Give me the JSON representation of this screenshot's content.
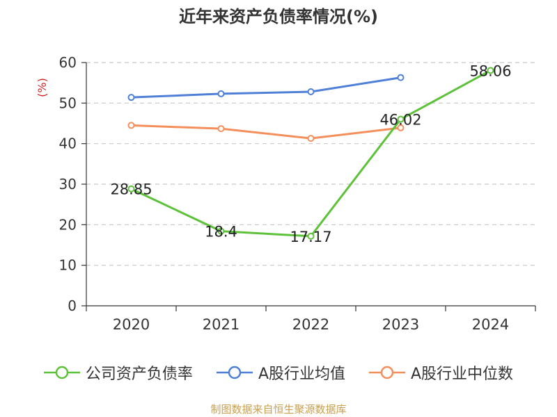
{
  "chart_data": {
    "type": "line",
    "title": "近年来资产负债率情况(%)",
    "ylabel": "(%)",
    "categories": [
      "2020",
      "2021",
      "2022",
      "2023",
      "2024"
    ],
    "ylim": [
      0,
      60
    ],
    "yticks": [
      0,
      10,
      20,
      30,
      40,
      50,
      60
    ],
    "grid": true,
    "legend_position": "bottom",
    "series": [
      {
        "name": "公司资产负债率",
        "color": "#5dc23a",
        "values": [
          28.85,
          18.4,
          17.17,
          46.02,
          58.06
        ],
        "labels": [
          "28.85",
          "18.4",
          "17.17",
          "46.02",
          "58.06"
        ]
      },
      {
        "name": "A股行业均值",
        "color": "#4f7fd6",
        "values": [
          51.4,
          52.3,
          52.8,
          56.3,
          null
        ]
      },
      {
        "name": "A股行业中位数",
        "color": "#f48f5b",
        "values": [
          44.5,
          43.7,
          41.3,
          43.9,
          null
        ]
      }
    ]
  },
  "source": "制图数据来自恒生聚源数据库"
}
